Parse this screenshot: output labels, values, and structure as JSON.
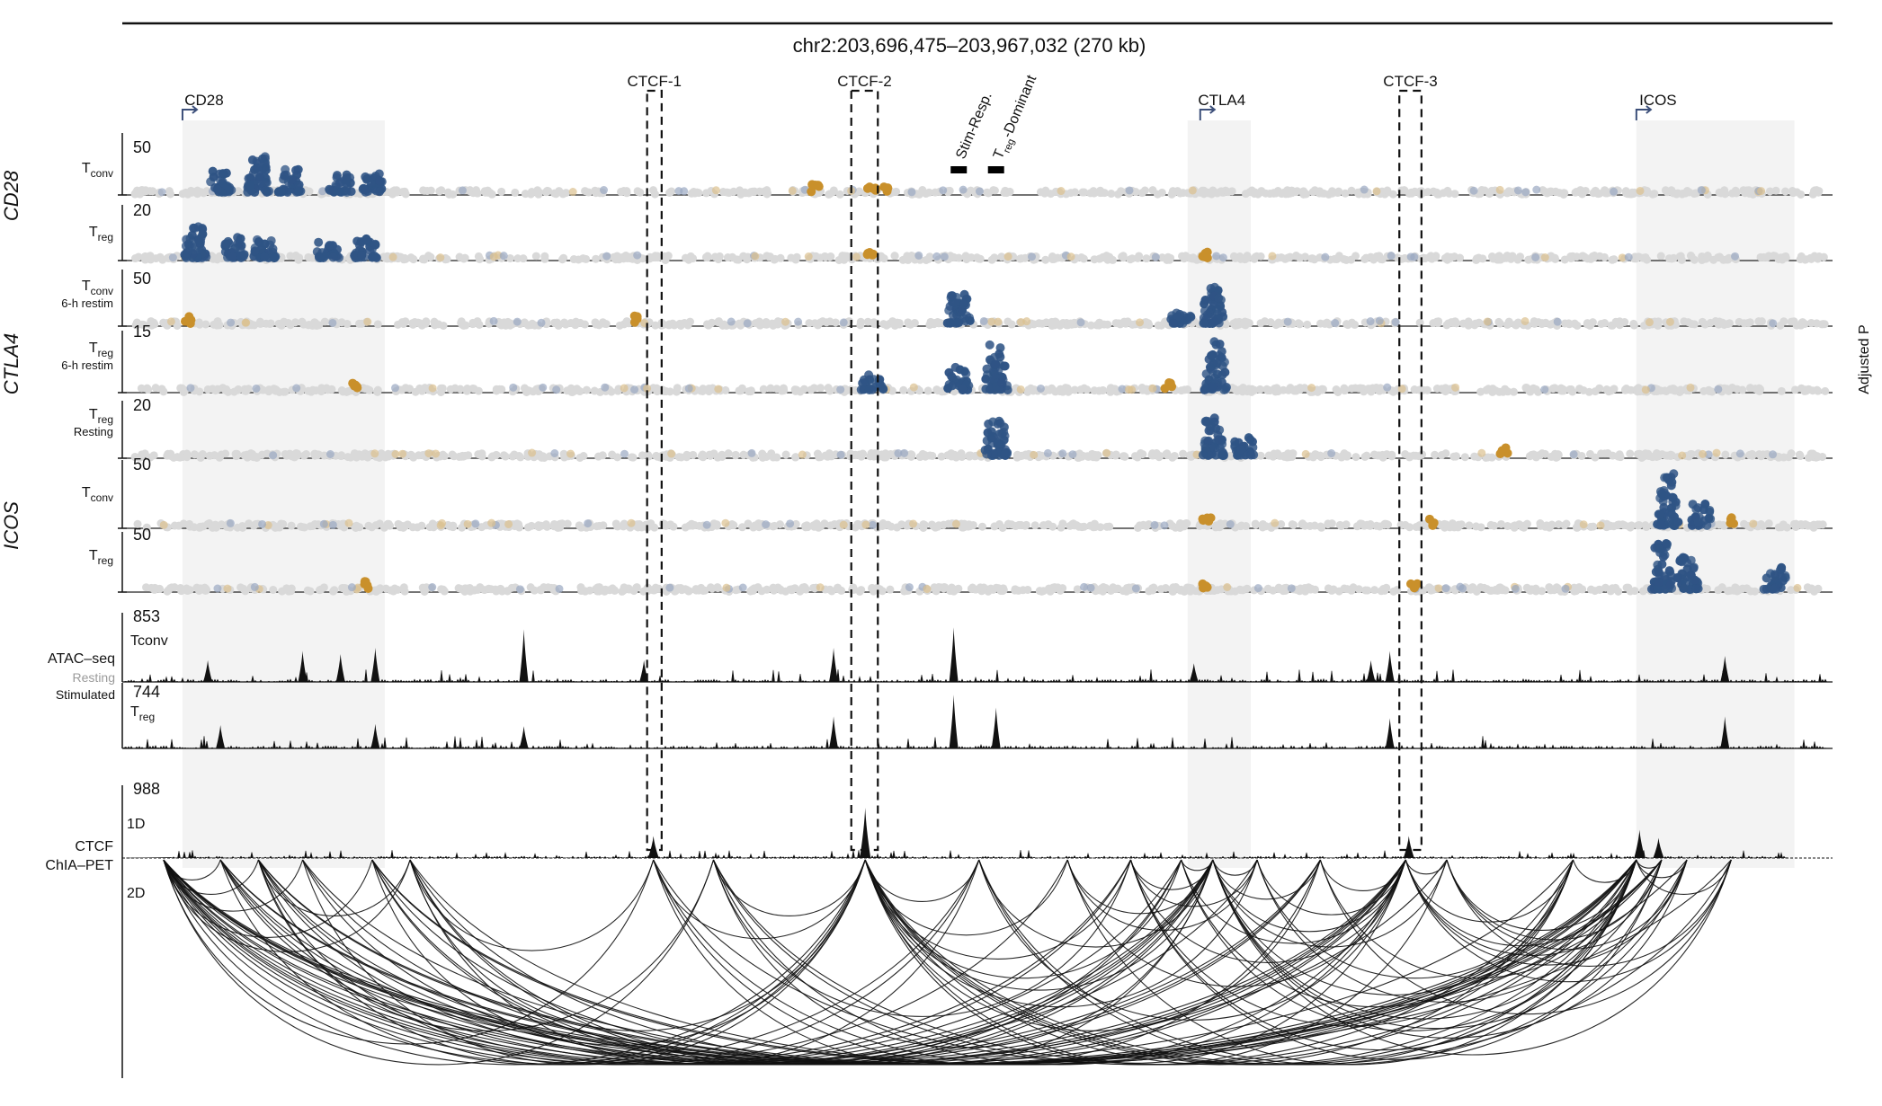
{
  "chart_data": {
    "type": "scatter",
    "region_label": "chr2:203,696,475–203,967,032 (270 kb)",
    "region_start": 203696475,
    "region_end": 203967032,
    "genes": [
      {
        "name": "CD28",
        "start": 203706000,
        "end": 203738000
      },
      {
        "name": "CTLA4",
        "start": 203867000,
        "end": 203873000
      },
      {
        "name": "ICOS",
        "start": 203936000,
        "end": 203961000
      }
    ],
    "ctcf_sites": [
      {
        "name": "CTCF-1",
        "start": 203779500,
        "end": 203781800
      },
      {
        "name": "CTCF-2",
        "start": 203811800,
        "end": 203816000
      },
      {
        "name": "CTCF-3",
        "start": 203898500,
        "end": 203902000
      }
    ],
    "markers": [
      {
        "name": "Stim-Resp.",
        "pos": 203828800
      },
      {
        "name_main": "T",
        "name_sub": "reg",
        "name_rest": "-Dominant",
        "pos": 203834700
      }
    ],
    "group_labels": [
      "CD28",
      "CTLA4",
      "ICOS"
    ],
    "side_label": "Adjusted P",
    "screen_tracks": [
      {
        "group": "CD28",
        "label_main": "T",
        "label_sub": "conv",
        "label_extra": "",
        "ymax": 50,
        "tick_label": "50",
        "peaks": [
          {
            "pos": 203712000,
            "height": 0.55
          },
          {
            "pos": 203718000,
            "height": 0.9
          },
          {
            "pos": 203723000,
            "height": 0.6
          },
          {
            "pos": 203731000,
            "height": 0.45
          },
          {
            "pos": 203736000,
            "height": 0.5
          }
        ],
        "orange": [
          203806000,
          203817000,
          203815000
        ]
      },
      {
        "group": "CD28",
        "label_main": "T",
        "label_sub": "reg",
        "label_extra": "",
        "ymax": 20,
        "tick_label": "20",
        "peaks": [
          {
            "pos": 203708000,
            "height": 0.75
          },
          {
            "pos": 203714000,
            "height": 0.55
          },
          {
            "pos": 203719000,
            "height": 0.5
          },
          {
            "pos": 203729000,
            "height": 0.4
          },
          {
            "pos": 203735000,
            "height": 0.45
          }
        ],
        "orange": [
          203815000,
          203868000
        ]
      },
      {
        "group": "CTLA4",
        "label_main": "T",
        "label_sub": "conv",
        "label_extra": "6-h restim",
        "ymax": 50,
        "tick_label": "50",
        "peaks": [
          {
            "pos": 203828800,
            "height": 0.75
          },
          {
            "pos": 203869000,
            "height": 0.95
          },
          {
            "pos": 203864000,
            "height": 0.3
          }
        ],
        "orange": [
          203707000,
          203778000
        ]
      },
      {
        "group": "CTLA4",
        "label_main": "T",
        "label_sub": "reg",
        "label_extra": "6-h restim",
        "ymax": 15,
        "tick_label": "15",
        "peaks": [
          {
            "pos": 203834700,
            "height": 0.9
          },
          {
            "pos": 203828800,
            "height": 0.45
          },
          {
            "pos": 203869500,
            "height": 0.95
          },
          {
            "pos": 203815200,
            "height": 0.3
          }
        ],
        "orange": [
          203733000,
          203862000
        ]
      },
      {
        "group": "CTLA4",
        "label_main": "T",
        "label_sub": "reg",
        "label_extra": "Resting",
        "ymax": 20,
        "tick_label": "20",
        "peaks": [
          {
            "pos": 203834700,
            "height": 0.8
          },
          {
            "pos": 203869000,
            "height": 0.85
          },
          {
            "pos": 203874000,
            "height": 0.4
          }
        ],
        "orange": [
          203915000
        ]
      },
      {
        "group": "ICOS",
        "label_main": "T",
        "label_sub": "conv",
        "label_extra": "",
        "ymax": 50,
        "tick_label": "50",
        "peaks": [
          {
            "pos": 203941000,
            "height": 0.95
          },
          {
            "pos": 203946000,
            "height": 0.4
          }
        ],
        "orange": [
          203868000,
          203904000,
          203951000
        ]
      },
      {
        "group": "ICOS",
        "label_main": "T",
        "label_sub": "reg",
        "label_extra": "",
        "ymax": 50,
        "tick_label": "50",
        "peaks": [
          {
            "pos": 203940000,
            "height": 0.95
          },
          {
            "pos": 203944000,
            "height": 0.7
          },
          {
            "pos": 203958000,
            "height": 0.45
          }
        ],
        "orange": [
          203868000,
          203901000,
          203735000
        ]
      }
    ],
    "atac_tracks": [
      {
        "label_main": "Tconv",
        "label_sub": "",
        "ymax": 853,
        "tick_label": "853",
        "peaks": [
          {
            "pos": 203710000,
            "h": 0.35
          },
          {
            "pos": 203725000,
            "h": 0.5
          },
          {
            "pos": 203731000,
            "h": 0.45
          },
          {
            "pos": 203736500,
            "h": 0.55
          },
          {
            "pos": 203760000,
            "h": 0.85
          },
          {
            "pos": 203779000,
            "h": 0.35
          },
          {
            "pos": 203809000,
            "h": 0.55
          },
          {
            "pos": 203828000,
            "h": 0.88
          },
          {
            "pos": 203866000,
            "h": 0.3
          },
          {
            "pos": 203894000,
            "h": 0.35
          },
          {
            "pos": 203897000,
            "h": 0.5
          },
          {
            "pos": 203950000,
            "h": 0.42
          }
        ]
      },
      {
        "label_main": "T",
        "label_sub": "reg",
        "ymax": 744,
        "tick_label": "744",
        "peaks": [
          {
            "pos": 203712000,
            "h": 0.4
          },
          {
            "pos": 203736500,
            "h": 0.42
          },
          {
            "pos": 203760000,
            "h": 0.38
          },
          {
            "pos": 203809000,
            "h": 0.55
          },
          {
            "pos": 203828000,
            "h": 0.92
          },
          {
            "pos": 203834700,
            "h": 0.7
          },
          {
            "pos": 203897000,
            "h": 0.52
          },
          {
            "pos": 203950000,
            "h": 0.55
          }
        ]
      }
    ],
    "atac_labels": [
      "ATAC–seq",
      "Resting",
      "Stimulated"
    ],
    "ctcf_1d": {
      "ymax": 988,
      "tick_label": "988",
      "label": "1D",
      "peaks": [
        {
          "pos": 203780500,
          "h": 0.35
        },
        {
          "pos": 203814000,
          "h": 0.8
        },
        {
          "pos": 203900000,
          "h": 0.35
        },
        {
          "pos": 203936500,
          "h": 0.45
        },
        {
          "pos": 203939500,
          "h": 0.32
        }
      ]
    },
    "ctcf_2d_label": "2D",
    "ctcf_title": [
      "CTCF",
      "ChIA–PET"
    ],
    "ctcf_loop_anchors": [
      203703000,
      203712000,
      203718000,
      203725000,
      203736000,
      203742000,
      203780500,
      203790000,
      203814000,
      203832000,
      203846000,
      203856000,
      203864000,
      203869000,
      203876000,
      203886000,
      203899500,
      203906000,
      203926000,
      203936000,
      203940000,
      203944000,
      203951000
    ],
    "colors": {
      "blue": "#2f5485",
      "orange": "#c9902b",
      "grey": "#d9d9d9",
      "shade": "#f3f3f3",
      "black": "#111111",
      "gene_arrow": "#3c4f7a"
    }
  }
}
